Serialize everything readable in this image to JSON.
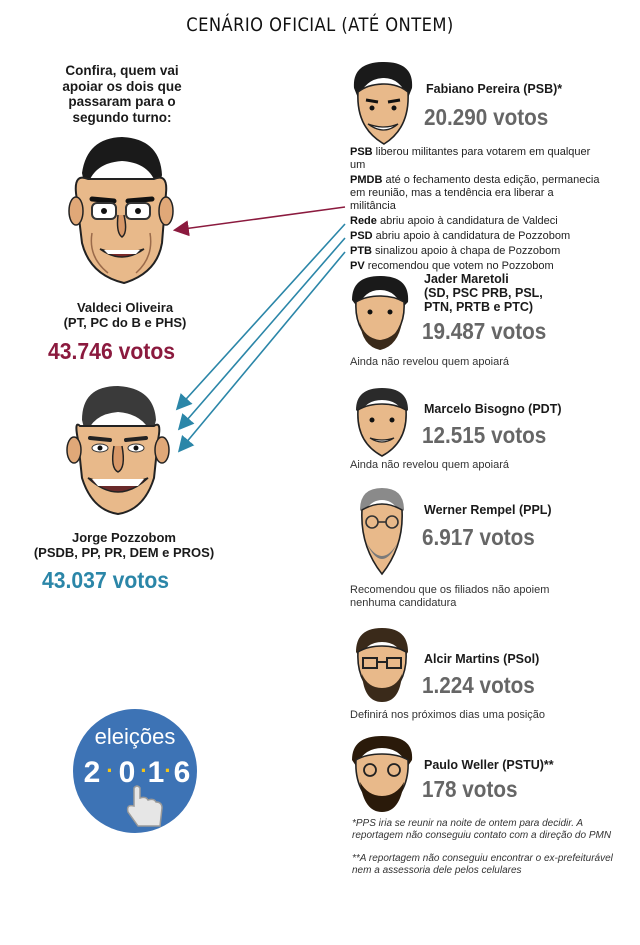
{
  "title": "CENÁRIO OFICIAL (ATÉ ONTEM)",
  "intro": "Confira, quem vai apoiar os dois que passaram para o segundo turno:",
  "runoff": [
    {
      "name": "Valdeci Oliveira",
      "parties": "(PT, PC do B e PHS)",
      "votes": "43.746 votos",
      "color": "#8b1a3e"
    },
    {
      "name": "Jorge Pozzobom",
      "parties": "(PSDB, PP, PR, DEM e PROS)",
      "votes": "43.037 votos",
      "color": "#2b86a8"
    }
  ],
  "fabiano": {
    "name": "Fabiano Pereira (PSB)*",
    "votes": "20.290 votos"
  },
  "supports": [
    {
      "party": "PSB",
      "text": " liberou militantes para votarem em qualquer um"
    },
    {
      "party": "PMDB",
      "text": " até o fechamento desta edição, permanecia em reunião, mas a tendência era liberar a militância"
    },
    {
      "party": "Rede",
      "text": " abriu apoio à candidatura de Valdeci"
    },
    {
      "party": "PSD",
      "text": " abriu apoio à candidatura de Pozzobom"
    },
    {
      "party": "PTB",
      "text": " sinalizou apoio à chapa de Pozzobom"
    },
    {
      "party": "PV",
      "text": " recomendou que votem no Pozzobom"
    }
  ],
  "others": [
    {
      "name": "Jader Maretoli\n(SD, PSC  PRB, PSL,\nPTN, PRTB e PTC)",
      "votes": "19.487 votos",
      "note": "Ainda não revelou quem apoiará"
    },
    {
      "name": "Marcelo Bisogno (PDT)",
      "votes": "12.515 votos",
      "note": "Ainda não revelou quem apoiará"
    },
    {
      "name": "Werner Rempel (PPL)",
      "votes": "6.917 votos",
      "note": "Recomendou que os filiados não apoiem nenhuma candidatura"
    },
    {
      "name": "Alcir Martins (PSol)",
      "votes": "1.224 votos",
      "note": "Definirá nos próximos dias uma posição"
    },
    {
      "name": "Paulo Weller (PSTU)**",
      "votes": "178 votos",
      "note": ""
    }
  ],
  "footnotes": [
    "*PPS iria se reunir na noite de ontem para decidir. A reportagem não conseguiu contato com a direção do PMN",
    "**A reportagem não conseguiu encontrar o ex-prefeiturável nem a assessoria dele pelos celulares"
  ],
  "logo": {
    "word": "eleições",
    "digits": [
      "2",
      "0",
      "1",
      "6"
    ]
  },
  "colors": {
    "valdeci": "#8b1a3e",
    "pozzobom": "#2b86a8",
    "logo": "#3d73b5",
    "grey": "#666666"
  }
}
